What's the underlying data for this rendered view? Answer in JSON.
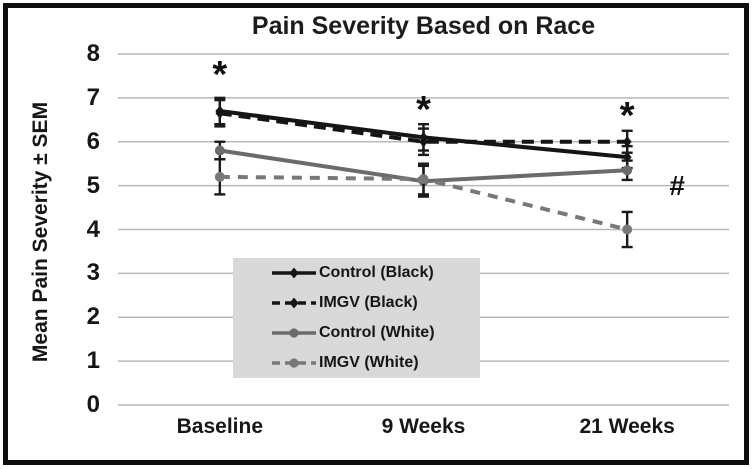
{
  "chart_data": {
    "type": "line",
    "title": "Pain Severity Based on Race",
    "ylabel": "Mean Pain Severity ± SEM",
    "xlabel": "",
    "categories": [
      "Baseline",
      "9 Weeks",
      "21 Weeks"
    ],
    "ylim": [
      0,
      8
    ],
    "yticks": [
      0,
      1,
      2,
      3,
      4,
      5,
      6,
      7,
      8
    ],
    "grid": true,
    "series": [
      {
        "name": "Control (Black)",
        "color": "#151515",
        "dash": "solid",
        "marker": "diamond",
        "values": [
          6.7,
          6.1,
          5.65
        ],
        "sem": [
          0.3,
          0.3,
          0.25
        ]
      },
      {
        "name": "IMGV (Black)",
        "color": "#151515",
        "dash": "dashed",
        "marker": "diamond",
        "values": [
          6.65,
          6.0,
          6.0
        ],
        "sem": [
          0.3,
          0.3,
          0.25
        ]
      },
      {
        "name": "Control (White)",
        "color": "#6b6b6b",
        "dash": "solid",
        "marker": "circle",
        "values": [
          5.8,
          5.1,
          5.35
        ],
        "sem": [
          0.2,
          0.35,
          0.22
        ]
      },
      {
        "name": "IMGV (White)",
        "color": "#787878",
        "dash": "dashed",
        "marker": "circle",
        "values": [
          5.2,
          5.15,
          4.0
        ],
        "sem": [
          0.4,
          0.35,
          0.4
        ]
      }
    ],
    "annotations": [
      {
        "symbol": "*",
        "category_index": 0,
        "y": 7.55,
        "dx": 0
      },
      {
        "symbol": "*",
        "category_index": 1,
        "y": 6.75,
        "dx": 0
      },
      {
        "symbol": "*",
        "category_index": 2,
        "y": 6.6,
        "dx": 0
      },
      {
        "symbol": "#",
        "category_index": 2,
        "y": 5.0,
        "dx": 50
      }
    ],
    "legend": {
      "position": "inside-bottom-center",
      "background": "#d9d9d9"
    },
    "colors": {
      "gridline": "#b8b8b8",
      "error_bar": "#1a1a1a",
      "frame_border": "#0e0e0e",
      "text": "#161616"
    }
  }
}
